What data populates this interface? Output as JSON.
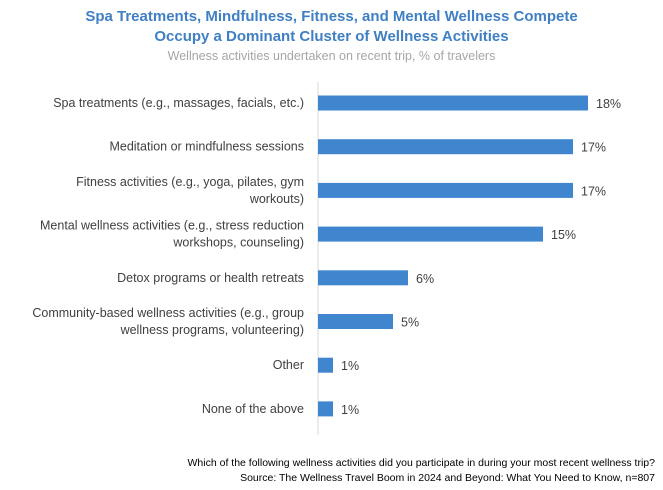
{
  "header": {
    "title_line1": "Spa Treatments, Mindfulness, Fitness, and Mental Wellness Compete",
    "title_line2": "Occupy a Dominant Cluster of Wellness Activities",
    "subtitle": "Wellness activities undertaken on recent trip, % of travelers"
  },
  "footer": {
    "question": "Which of the following wellness activities did you participate in during your most recent wellness trip?",
    "source": "Source: The Wellness Travel Boom in 2024 and Beyond: What You Need to Know, n=807"
  },
  "colors": {
    "bar": "#3f86cf",
    "title": "#3f7fc3",
    "subtitle": "#a6a6a6",
    "axis": "#d9d9d9",
    "text": "#404040"
  },
  "chart_data": {
    "type": "bar",
    "orientation": "horizontal",
    "title": "Spa Treatments, Mindfulness, Fitness, and Mental Wellness Compete Occupy a Dominant Cluster of Wellness Activities",
    "subtitle": "Wellness activities undertaken on recent trip, % of travelers",
    "categories": [
      [
        "Spa treatments (e.g., massages, facials, etc.)"
      ],
      [
        "Meditation or mindfulness sessions"
      ],
      [
        "Fitness activities (e.g., yoga, pilates, gym",
        "workouts)"
      ],
      [
        "Mental wellness activities (e.g., stress reduction",
        "workshops, counseling)"
      ],
      [
        "Detox programs or health retreats"
      ],
      [
        "Community-based wellness activities (e.g., group",
        "wellness programs, volunteering)"
      ],
      [
        "Other"
      ],
      [
        "None of the above"
      ]
    ],
    "values": [
      18,
      17,
      17,
      15,
      6,
      5,
      1,
      1
    ],
    "data_labels": [
      "18%",
      "17%",
      "17%",
      "15%",
      "6%",
      "5%",
      "1%",
      "1%"
    ],
    "unit": "%",
    "xlim": [
      0,
      18
    ],
    "grid": false,
    "legend": "none"
  }
}
